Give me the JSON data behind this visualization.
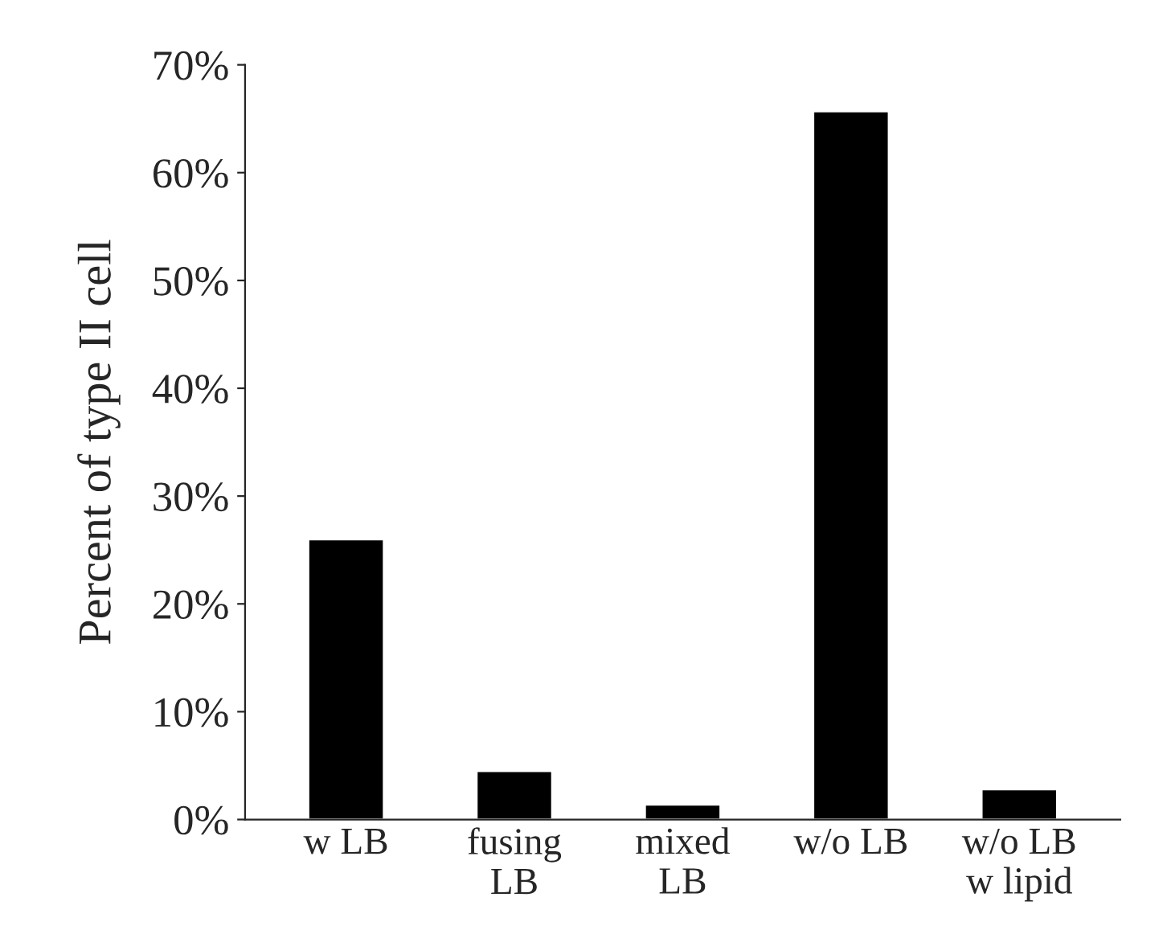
{
  "chart_data": {
    "type": "bar",
    "ylabel": "Percent of type II cell",
    "categories": [
      "w LB",
      "fusing\nLB",
      "mixed\nLB",
      "w/o LB",
      "w/o LB\nw lipid"
    ],
    "values": [
      26,
      4.5,
      1.4,
      65.7,
      2.8
    ],
    "color": "#000000",
    "ylim": [
      0,
      70
    ],
    "yticks": [
      {
        "value": 0,
        "label": "0%"
      },
      {
        "value": 10,
        "label": "10%"
      },
      {
        "value": 20,
        "label": "20%"
      },
      {
        "value": 30,
        "label": "30%"
      },
      {
        "value": 40,
        "label": "40%"
      },
      {
        "value": 50,
        "label": "50%"
      },
      {
        "value": 60,
        "label": "60%"
      },
      {
        "value": 70,
        "label": "70%"
      }
    ],
    "grid": false,
    "legend": false
  }
}
